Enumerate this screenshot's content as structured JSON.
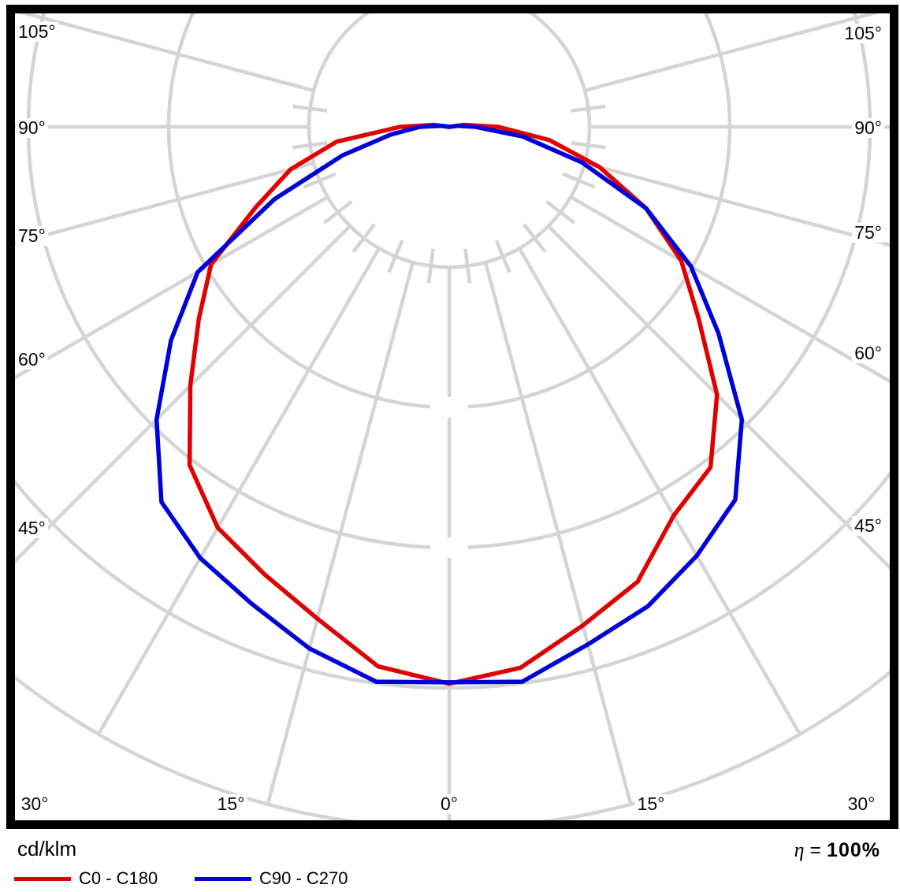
{
  "chart_data": {
    "type": "line",
    "variant": "polar photometric luminous-intensity distribution; 0° points to nadir (down), angles increase to ±105°",
    "units_label": "cd/klm",
    "eta_symbol": "η",
    "eta_equals": "=",
    "eta_value": "100%",
    "grid": {
      "rings": 5,
      "ring_values_labeled": false,
      "radial_lines_every_deg": 15,
      "tick_marks_every_deg": 7.5,
      "grid_color": "#d4d4d4",
      "frame_color": "#000000",
      "note": "ring radii carry no printed numeric values; curve radii below are given in ring units (1.0 = one grid ring spacing)"
    },
    "angle_tick_labels": {
      "left": [
        "105°",
        "90°",
        "75°",
        "60°",
        "45°"
      ],
      "right": [
        "105°",
        "90°",
        "75°",
        "60°",
        "45°"
      ],
      "bottom": [
        "30°",
        "15°",
        "0°",
        "15°",
        "30°"
      ]
    },
    "gamma_deg": [
      -105,
      -97.5,
      -90,
      -82.5,
      -75,
      -67.5,
      -60,
      -52.5,
      -45,
      -37.5,
      -30,
      -22.5,
      -15,
      -7.5,
      0,
      7.5,
      15,
      22.5,
      30,
      37.5,
      45,
      52.5,
      60,
      67.5,
      75,
      82.5,
      90,
      97.5,
      105
    ],
    "series": [
      {
        "name": "C0 - C180",
        "color": "#e00000",
        "r_rings": [
          0,
          0.11,
          0.35,
          0.81,
          1.17,
          1.49,
          1.96,
          2.25,
          2.61,
          3.04,
          3.3,
          3.45,
          3.63,
          3.88,
          3.97,
          3.89,
          3.68,
          3.51,
          3.2,
          3.06,
          2.7,
          2.24,
          1.91,
          1.52,
          1.11,
          0.72,
          0.35,
          0.11,
          0
        ]
      },
      {
        "name": "C90 - C270",
        "color": "#0000d8",
        "r_rings": [
          0,
          0.06,
          0.21,
          0.42,
          0.79,
          1.35,
          2.07,
          2.5,
          2.95,
          3.37,
          3.55,
          3.68,
          3.85,
          3.99,
          3.96,
          3.99,
          3.82,
          3.7,
          3.53,
          3.35,
          2.95,
          2.42,
          1.99,
          1.52,
          0.98,
          0.53,
          0.19,
          0.06,
          0
        ]
      }
    ],
    "legend_position": "bottom-left"
  }
}
